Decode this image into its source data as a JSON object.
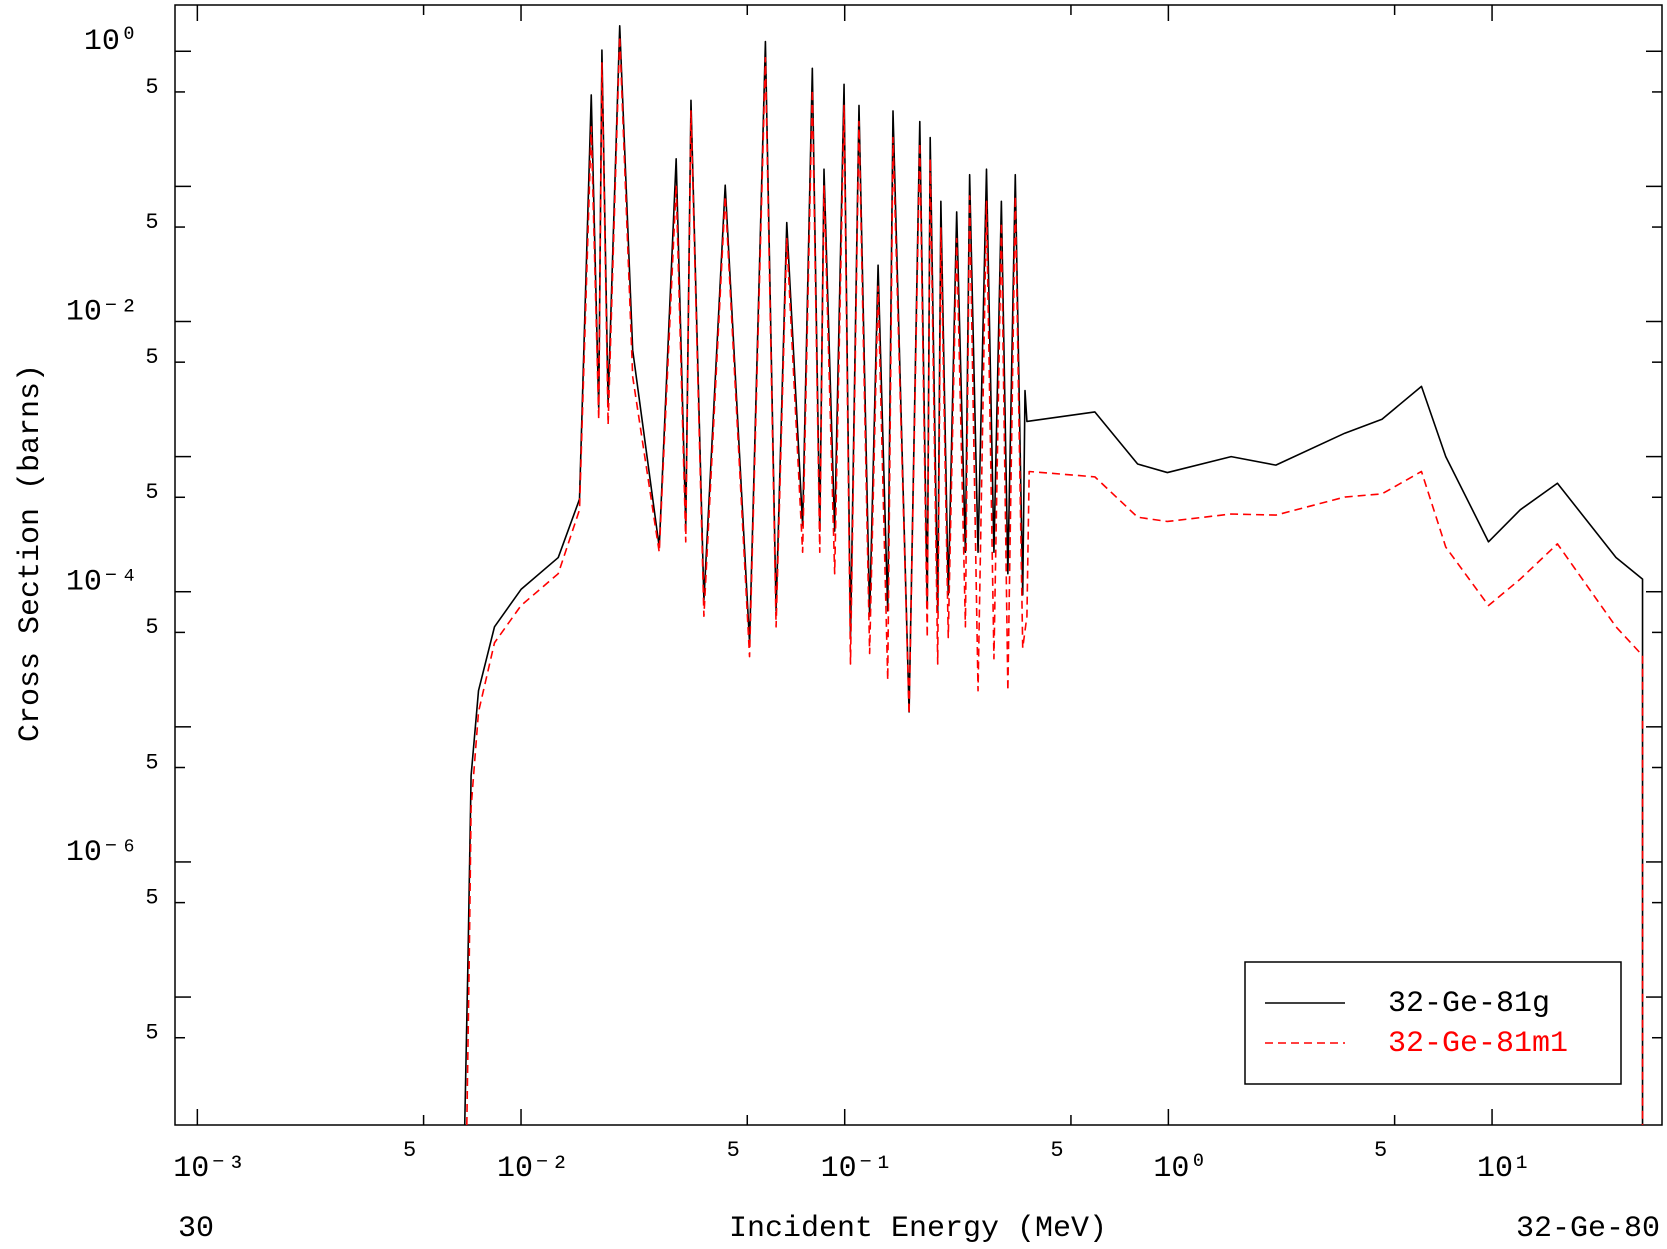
{
  "chart_data": {
    "type": "line",
    "x_label": "Incident Energy (MeV)",
    "y_label": "Cross Section (barns)",
    "annotations": [
      "30",
      "32-Ge-80"
    ],
    "xscale": "log",
    "yscale": "log",
    "xlim": [
      0.000853,
      33.5
    ],
    "ylim": [
      1.13e-08,
      2.2
    ],
    "xticks": [
      {
        "value": 0.001,
        "label": "10⁻³"
      },
      {
        "value": 0.005,
        "label": "5"
      },
      {
        "value": 0.01,
        "label": "10⁻²"
      },
      {
        "value": 0.05,
        "label": "5"
      },
      {
        "value": 0.1,
        "label": "10⁻¹"
      },
      {
        "value": 0.5,
        "label": "5"
      },
      {
        "value": 1,
        "label": "10⁰"
      },
      {
        "value": 5,
        "label": "5"
      },
      {
        "value": 10,
        "label": "10¹"
      }
    ],
    "yticks": [
      {
        "value": 1,
        "label": "10⁰"
      },
      {
        "value": 0.5,
        "label": "5"
      },
      {
        "value": 0.05,
        "label": "5"
      },
      {
        "value": 0.01,
        "label": "10⁻²"
      },
      {
        "value": 0.005,
        "label": "5"
      },
      {
        "value": 0.0005,
        "label": "5"
      },
      {
        "value": 0.0001,
        "label": "10⁻⁴"
      },
      {
        "value": 5e-05,
        "label": "5"
      },
      {
        "value": 5e-06,
        "label": "5"
      },
      {
        "value": 1e-06,
        "label": "10⁻⁶"
      },
      {
        "value": 5e-07,
        "label": "5"
      },
      {
        "value": 5e-08,
        "label": "5"
      }
    ],
    "yticks_minor": [
      0.1,
      0.001,
      1e-05,
      1e-07
    ],
    "legend": "lower right",
    "series": [
      {
        "name": "32-Ge-81g",
        "color": "#000000",
        "dash": false,
        "x": [
          0.0067,
          0.00685,
          0.00701,
          0.00739,
          0.00828,
          0.01,
          0.01303,
          0.01516,
          0.01648,
          0.01738,
          0.01778,
          0.01858,
          0.02018,
          0.02213,
          0.02673,
          0.03015,
          0.03228,
          0.0335,
          0.03673,
          0.04274,
          0.05082,
          0.05689,
          0.06138,
          0.06622,
          0.07413,
          0.07943,
          0.08375,
          0.0863,
          0.09311,
          0.09954,
          0.1042,
          0.1107,
          0.1194,
          0.1268,
          0.1358,
          0.141,
          0.1581,
          0.1706,
          0.1799,
          0.1837,
          0.1938,
          0.1982,
          0.2089,
          0.2218,
          0.236,
          0.2432,
          0.2582,
          0.2742,
          0.2891,
          0.3048,
          0.3192,
          0.3365,
          0.3548,
          0.3606,
          0.3656,
          0.5929,
          0.8035,
          0.993,
          1.563,
          2.148,
          3.508,
          4.571,
          6.053,
          7.194,
          9.75,
          12.22,
          15.92,
          24.15,
          29.17,
          29.17
        ],
        "values": [
          1.13e-08,
          1.66e-07,
          4.35e-06,
          1.85e-05,
          5.5e-05,
          0.000104,
          0.000179,
          0.000484,
          0.475,
          0.00226,
          1.02,
          0.00248,
          1.545,
          0.00613,
          0.000214,
          0.16,
          0.000308,
          0.434,
          8.65e-05,
          0.102,
          4.19e-05,
          1.18,
          7.22e-05,
          0.054,
          0.000308,
          0.748,
          0.000281,
          0.134,
          0.000281,
          0.57,
          4.58e-05,
          0.397,
          6.59e-05,
          0.0261,
          7.22e-05,
          0.362,
          1.29e-05,
          0.302,
          7.9e-05,
          0.23,
          7.22e-05,
          0.0776,
          9.47e-05,
          0.0647,
          0.000196,
          0.122,
          0.000196,
          0.134,
          0.000196,
          0.0776,
          0.000136,
          0.122,
          9.47e-05,
          0.00308,
          0.00182,
          0.00214,
          0.000881,
          0.000762,
          0.001,
          0.000865,
          0.00149,
          0.00189,
          0.00331,
          0.001,
          0.000234,
          0.000404,
          0.000635,
          0.000179,
          0.000124,
          1.13e-08
        ]
      },
      {
        "name": "32-Ge-81m1",
        "color": "#ff0000",
        "dash": true,
        "x": [
          0.0068,
          0.00692,
          0.00701,
          0.00739,
          0.00828,
          0.01,
          0.01303,
          0.01516,
          0.01648,
          0.01738,
          0.01778,
          0.01858,
          0.02018,
          0.02213,
          0.02673,
          0.03015,
          0.03228,
          0.0335,
          0.03673,
          0.04274,
          0.05082,
          0.05689,
          0.06138,
          0.06622,
          0.07413,
          0.07943,
          0.08375,
          0.0863,
          0.09311,
          0.09954,
          0.1042,
          0.1107,
          0.1194,
          0.1268,
          0.1358,
          0.141,
          0.1581,
          0.1706,
          0.1799,
          0.1837,
          0.1938,
          0.1982,
          0.2089,
          0.2218,
          0.236,
          0.2432,
          0.2582,
          0.2742,
          0.2891,
          0.3048,
          0.3192,
          0.3365,
          0.3548,
          0.3656,
          0.3715,
          0.5929,
          0.8035,
          0.993,
          1.563,
          2.148,
          3.508,
          4.571,
          6.053,
          7.194,
          9.75,
          12.22,
          15.92,
          24.15,
          29.17,
          29.17
        ],
        "values": [
          1.13e-08,
          1.99e-07,
          2.52e-06,
          1.29e-05,
          4.19e-05,
          7.9e-05,
          0.000136,
          0.000404,
          0.276,
          0.00189,
          0.819,
          0.00172,
          1.29,
          0.0039,
          0.000196,
          0.102,
          0.000234,
          0.362,
          6.59e-05,
          0.0849,
          3.31e-05,
          0.897,
          5.5e-05,
          0.0411,
          0.000196,
          0.521,
          0.000196,
          0.102,
          0.000136,
          0.397,
          2.92e-05,
          0.302,
          3.49e-05,
          0.0182,
          2.22e-05,
          0.23,
          1.24e-05,
          0.21,
          4.58e-05,
          0.16,
          2.92e-05,
          0.0493,
          4.58e-05,
          0.0411,
          5.5e-05,
          0.0849,
          1.85e-05,
          0.0776,
          3.19e-05,
          0.054,
          1.85e-05,
          0.0849,
          3.83e-05,
          6.59e-05,
          0.000776,
          0.000708,
          0.000356,
          0.000331,
          0.000376,
          0.000369,
          0.000502,
          0.00053,
          0.000776,
          0.000214,
          7.9e-05,
          0.000124,
          0.000226,
          5.5e-05,
          3.37e-05,
          1.13e-08
        ]
      }
    ]
  }
}
